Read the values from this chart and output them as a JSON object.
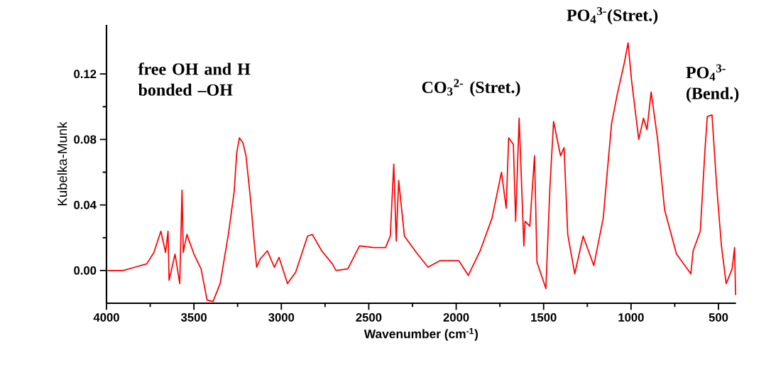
{
  "chart_data": {
    "type": "line",
    "xlabel": "Wavenumber (cm$^{-1}$)",
    "ylabel": "Kubelka-Munk",
    "xlim": [
      4000,
      400
    ],
    "xticks": [
      4000,
      3500,
      3000,
      2500,
      2000,
      1500,
      1000,
      500
    ],
    "ylim": [
      -0.02,
      0.15
    ],
    "yticks": [
      {
        "value": 0,
        "label": "0.00"
      },
      {
        "value": 0.04,
        "label": "0.04"
      },
      {
        "value": 0.08,
        "label": "0.08"
      },
      {
        "value": 0.12,
        "label": "0.12"
      }
    ],
    "line_style": "solid",
    "annotations": [
      "free OH and H bonded –OH",
      "CO$_{3}$$^{2-}$ (Stret.)",
      "PO$_{4}$$^{3-}$(Stret.)",
      "PO$_{4}$$^{3-}$ (Bend.)"
    ],
    "series": [
      {
        "color": "#ff0000",
        "x": [
          3995,
          3905,
          3838,
          3770,
          3729,
          3689,
          3662,
          3648,
          3642,
          3608,
          3581,
          3568,
          3561,
          3540,
          3500,
          3459,
          3425,
          3391,
          3350,
          3303,
          3270,
          3255,
          3240,
          3220,
          3202,
          3175,
          3155,
          3141,
          3121,
          3080,
          3040,
          3013,
          2965,
          2918,
          2850,
          2823,
          2769,
          2708,
          2688,
          2620,
          2553,
          2471,
          2404,
          2377,
          2357,
          2343,
          2329,
          2296,
          2228,
          2161,
          2093,
          1985,
          1931,
          1863,
          1795,
          1741,
          1714,
          1700,
          1673,
          1660,
          1640,
          1613,
          1606,
          1579,
          1552,
          1538,
          1487,
          1464,
          1443,
          1403,
          1383,
          1362,
          1322,
          1274,
          1213,
          1159,
          1132,
          1111,
          1078,
          1038,
          1017,
          997,
          956,
          929,
          909,
          885,
          848,
          808,
          740,
          658,
          645,
          604,
          577,
          564,
          537,
          510,
          483,
          456,
          422,
          408,
          402
        ],
        "values": [
          0.0,
          0.0,
          0.002,
          0.004,
          0.011,
          0.024,
          0.011,
          0.024,
          -0.006,
          0.01,
          -0.008,
          0.049,
          0.011,
          0.022,
          0.01,
          0.001,
          -0.018,
          -0.019,
          -0.008,
          0.022,
          0.048,
          0.072,
          0.081,
          0.078,
          0.07,
          0.042,
          0.017,
          0.002,
          0.007,
          0.012,
          0.002,
          0.008,
          -0.008,
          -0.001,
          0.021,
          0.022,
          0.012,
          0.004,
          0.0,
          0.001,
          0.015,
          0.014,
          0.014,
          0.021,
          0.065,
          0.018,
          0.055,
          0.021,
          0.011,
          0.002,
          0.006,
          0.006,
          -0.003,
          0.012,
          0.032,
          0.06,
          0.038,
          0.081,
          0.077,
          0.03,
          0.093,
          0.015,
          0.03,
          0.027,
          0.07,
          0.005,
          -0.011,
          0.051,
          0.091,
          0.07,
          0.075,
          0.022,
          -0.002,
          0.021,
          0.003,
          0.032,
          0.065,
          0.09,
          0.108,
          0.127,
          0.139,
          0.116,
          0.08,
          0.093,
          0.086,
          0.109,
          0.08,
          0.037,
          0.01,
          -0.002,
          0.012,
          0.024,
          0.074,
          0.094,
          0.095,
          0.051,
          0.015,
          -0.008,
          0.001,
          0.014,
          -0.015
        ]
      }
    ]
  }
}
